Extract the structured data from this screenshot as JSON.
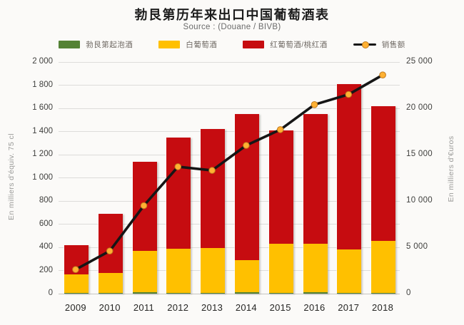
{
  "title": "勃艮第历年来出口中国葡萄酒表",
  "subtitle": "Source : (Douane / BIVB)",
  "legend": [
    {
      "key": "sparkling",
      "label": "勃艮第起泡酒",
      "color": "#548235",
      "swatch": "box"
    },
    {
      "key": "white-wine",
      "label": "白葡萄酒",
      "color": "#FFC000",
      "swatch": "box"
    },
    {
      "key": "red-wine",
      "label": "红葡萄酒/桃红酒",
      "color": "#C60C10",
      "swatch": "box"
    },
    {
      "key": "sales",
      "label": "销售额",
      "color": "#161616",
      "swatch": "line-marker",
      "marker_color": "#FFB133"
    }
  ],
  "chart_data": {
    "type": "bar",
    "subtype": "stacked-bars-with-line",
    "title": "勃艮第历年来出口中国葡萄酒表",
    "subtitle": "Source : (Douane / BIVB)",
    "grid": true,
    "legend_position": "top",
    "categories": [
      "2009",
      "2010",
      "2011",
      "2012",
      "2013",
      "2014",
      "2015",
      "2016",
      "2017",
      "2018"
    ],
    "series": [
      {
        "key": "sparkling",
        "name": "勃艮第起泡酒",
        "type": "bar",
        "axis": "left",
        "color": "#548235",
        "values": [
          5,
          5,
          10,
          5,
          5,
          10,
          5,
          10,
          5,
          5
        ]
      },
      {
        "key": "white-wine",
        "name": "白葡萄酒",
        "type": "bar",
        "axis": "left",
        "color": "#FFC000",
        "values": [
          160,
          175,
          360,
          380,
          390,
          280,
          425,
          420,
          375,
          450
        ]
      },
      {
        "key": "red-wine",
        "name": "红葡萄酒/桃红酒",
        "type": "bar",
        "axis": "left",
        "color": "#C60C10",
        "values": [
          255,
          510,
          770,
          965,
          1025,
          1260,
          980,
          1120,
          1430,
          1165
        ]
      },
      {
        "key": "sales",
        "name": "销售额",
        "type": "line",
        "axis": "right",
        "color": "#161616",
        "marker_color": "#FFB133",
        "values": [
          2600,
          4600,
          9500,
          13700,
          13300,
          16000,
          17700,
          20400,
          21500,
          23600
        ]
      }
    ],
    "bar_totals": [
      420,
      690,
      1140,
      1350,
      1420,
      1550,
      1410,
      1550,
      1810,
      1620
    ],
    "left_axis": {
      "label": "En milliers d'équiv. 75 cl",
      "min": 0,
      "max": 2000,
      "step": 200,
      "tick_labels": [
        "0",
        "200",
        "400",
        "600",
        "800",
        "1 000",
        "1 200",
        "1 400",
        "1 600",
        "1 800",
        "2 000"
      ]
    },
    "right_axis": {
      "label": "En milliers d'€uros",
      "min": 0,
      "max": 25000,
      "step": 5000,
      "tick_labels": [
        "0",
        "5 000",
        "10 000",
        "15 000",
        "20 000",
        "25 000"
      ]
    }
  }
}
